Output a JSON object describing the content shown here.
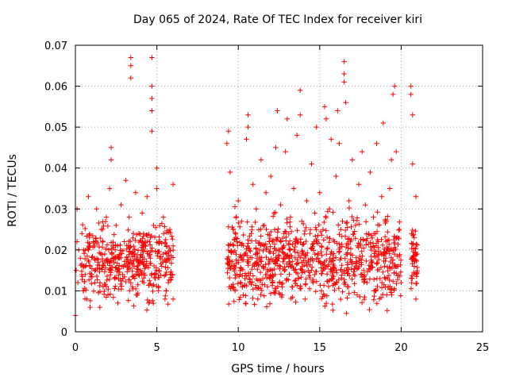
{
  "chart_data": {
    "type": "scatter",
    "title": "Day 065 of 2024, Rate Of TEC Index for receiver kiri",
    "xlabel": "GPS time / hours",
    "ylabel": "ROTI / TECUs",
    "xlim": [
      0,
      25
    ],
    "ylim": [
      0,
      0.07
    ],
    "xticks": [
      0,
      5,
      10,
      15,
      20,
      25
    ],
    "xtick_labels": [
      "0",
      "5",
      "10",
      "15",
      "20",
      "25"
    ],
    "yticks": [
      0,
      0.01,
      0.02,
      0.03,
      0.04,
      0.05,
      0.06,
      0.07
    ],
    "ytick_labels": [
      "0",
      "0.01",
      "0.02",
      "0.03",
      "0.04",
      "0.05",
      "0.06",
      "0.07"
    ],
    "grid": true,
    "marker": "+",
    "color": "#ff0000",
    "series": [
      {
        "name": "ROTI",
        "points": [
          [
            0.0,
            0.004
          ],
          [
            0.05,
            0.015
          ],
          [
            0.1,
            0.022
          ],
          [
            0.1,
            0.03
          ],
          [
            0.15,
            0.012
          ],
          [
            0.2,
            0.02
          ],
          [
            0.3,
            0.018
          ],
          [
            0.4,
            0.024
          ],
          [
            0.5,
            0.01
          ],
          [
            0.6,
            0.016
          ],
          [
            0.7,
            0.008
          ],
          [
            0.8,
            0.02
          ],
          [
            0.8,
            0.033
          ],
          [
            0.9,
            0.006
          ],
          [
            1.0,
            0.014
          ],
          [
            1.1,
            0.022
          ],
          [
            1.2,
            0.012
          ],
          [
            1.3,
            0.03
          ],
          [
            1.4,
            0.017
          ],
          [
            1.5,
            0.006
          ],
          [
            1.6,
            0.025
          ],
          [
            1.7,
            0.011
          ],
          [
            1.8,
            0.019
          ],
          [
            1.9,
            0.028
          ],
          [
            2.0,
            0.009
          ],
          [
            2.1,
            0.035
          ],
          [
            2.2,
            0.045
          ],
          [
            2.2,
            0.042
          ],
          [
            2.3,
            0.021
          ],
          [
            2.4,
            0.013
          ],
          [
            2.5,
            0.026
          ],
          [
            2.6,
            0.007
          ],
          [
            2.7,
            0.018
          ],
          [
            2.8,
            0.031
          ],
          [
            2.9,
            0.014
          ],
          [
            3.0,
            0.022
          ],
          [
            3.1,
            0.037
          ],
          [
            3.2,
            0.016
          ],
          [
            3.3,
            0.028
          ],
          [
            3.4,
            0.067
          ],
          [
            3.4,
            0.065
          ],
          [
            3.4,
            0.062
          ],
          [
            3.5,
            0.011
          ],
          [
            3.6,
            0.019
          ],
          [
            3.7,
            0.034
          ],
          [
            3.8,
            0.009
          ],
          [
            3.9,
            0.024
          ],
          [
            4.0,
            0.015
          ],
          [
            4.1,
            0.029
          ],
          [
            4.2,
            0.012
          ],
          [
            4.3,
            0.021
          ],
          [
            4.4,
            0.033
          ],
          [
            4.5,
            0.007
          ],
          [
            4.6,
            0.018
          ],
          [
            4.7,
            0.067
          ],
          [
            4.7,
            0.06
          ],
          [
            4.7,
            0.057
          ],
          [
            4.7,
            0.054
          ],
          [
            4.7,
            0.049
          ],
          [
            4.8,
            0.026
          ],
          [
            4.9,
            0.013
          ],
          [
            5.0,
            0.035
          ],
          [
            5.0,
            0.04
          ],
          [
            5.1,
            0.01
          ],
          [
            5.2,
            0.022
          ],
          [
            5.3,
            0.016
          ],
          [
            5.4,
            0.028
          ],
          [
            5.5,
            0.008
          ],
          [
            5.6,
            0.019
          ],
          [
            5.7,
            0.012
          ],
          [
            5.8,
            0.025
          ],
          [
            5.9,
            0.014
          ],
          [
            6.0,
            0.021
          ],
          [
            6.0,
            0.036
          ],
          [
            6.0,
            0.008
          ],
          [
            9.3,
            0.046
          ],
          [
            9.4,
            0.049
          ],
          [
            9.5,
            0.039
          ],
          [
            9.6,
            0.016
          ],
          [
            9.7,
            0.025
          ],
          [
            9.8,
            0.01
          ],
          [
            9.9,
            0.022
          ],
          [
            10.0,
            0.032
          ],
          [
            10.1,
            0.014
          ],
          [
            10.2,
            0.027
          ],
          [
            10.3,
            0.009
          ],
          [
            10.4,
            0.019
          ],
          [
            10.5,
            0.047
          ],
          [
            10.6,
            0.053
          ],
          [
            10.6,
            0.05
          ],
          [
            10.7,
            0.012
          ],
          [
            10.8,
            0.024
          ],
          [
            10.9,
            0.036
          ],
          [
            11.0,
            0.016
          ],
          [
            11.1,
            0.03
          ],
          [
            11.2,
            0.008
          ],
          [
            11.3,
            0.02
          ],
          [
            11.4,
            0.042
          ],
          [
            11.5,
            0.013
          ],
          [
            11.6,
            0.026
          ],
          [
            11.7,
            0.034
          ],
          [
            11.8,
            0.011
          ],
          [
            11.9,
            0.022
          ],
          [
            12.0,
            0.038
          ],
          [
            12.1,
            0.015
          ],
          [
            12.2,
            0.029
          ],
          [
            12.3,
            0.045
          ],
          [
            12.4,
            0.054
          ],
          [
            12.5,
            0.018
          ],
          [
            12.6,
            0.031
          ],
          [
            12.7,
            0.009
          ],
          [
            12.8,
            0.024
          ],
          [
            12.9,
            0.044
          ],
          [
            13.0,
            0.052
          ],
          [
            13.1,
            0.016
          ],
          [
            13.2,
            0.028
          ],
          [
            13.3,
            0.011
          ],
          [
            13.4,
            0.035
          ],
          [
            13.5,
            0.022
          ],
          [
            13.6,
            0.048
          ],
          [
            13.7,
            0.013
          ],
          [
            13.8,
            0.059
          ],
          [
            13.8,
            0.053
          ],
          [
            13.9,
            0.027
          ],
          [
            14.0,
            0.019
          ],
          [
            14.1,
            0.008
          ],
          [
            14.2,
            0.032
          ],
          [
            14.3,
            0.015
          ],
          [
            14.4,
            0.024
          ],
          [
            14.5,
            0.041
          ],
          [
            14.6,
            0.012
          ],
          [
            14.7,
            0.029
          ],
          [
            14.8,
            0.05
          ],
          [
            14.9,
            0.018
          ],
          [
            15.0,
            0.034
          ],
          [
            15.1,
            0.01
          ],
          [
            15.2,
            0.025
          ],
          [
            15.3,
            0.055
          ],
          [
            15.4,
            0.052
          ],
          [
            15.5,
            0.016
          ],
          [
            15.6,
            0.03
          ],
          [
            15.7,
            0.047
          ],
          [
            15.8,
            0.013
          ],
          [
            15.9,
            0.022
          ],
          [
            16.0,
            0.038
          ],
          [
            16.1,
            0.054
          ],
          [
            16.2,
            0.046
          ],
          [
            16.3,
            0.018
          ],
          [
            16.4,
            0.027
          ],
          [
            16.5,
            0.066
          ],
          [
            16.5,
            0.063
          ],
          [
            16.5,
            0.061
          ],
          [
            16.6,
            0.056
          ],
          [
            16.7,
            0.011
          ],
          [
            16.8,
            0.032
          ],
          [
            16.9,
            0.019
          ],
          [
            17.0,
            0.042
          ],
          [
            17.1,
            0.014
          ],
          [
            17.2,
            0.026
          ],
          [
            17.3,
            0.009
          ],
          [
            17.4,
            0.036
          ],
          [
            17.5,
            0.021
          ],
          [
            17.6,
            0.044
          ],
          [
            17.7,
            0.015
          ],
          [
            17.8,
            0.031
          ],
          [
            17.9,
            0.012
          ],
          [
            18.0,
            0.024
          ],
          [
            18.1,
            0.039
          ],
          [
            18.2,
            0.017
          ],
          [
            18.3,
            0.028
          ],
          [
            18.4,
            0.01
          ],
          [
            18.5,
            0.046
          ],
          [
            18.6,
            0.022
          ],
          [
            18.7,
            0.013
          ],
          [
            18.8,
            0.033
          ],
          [
            18.9,
            0.051
          ],
          [
            19.0,
            0.019
          ],
          [
            19.1,
            0.027
          ],
          [
            19.2,
            0.011
          ],
          [
            19.3,
            0.035
          ],
          [
            19.4,
            0.042
          ],
          [
            19.5,
            0.058
          ],
          [
            19.6,
            0.06
          ],
          [
            19.7,
            0.044
          ],
          [
            19.8,
            0.016
          ],
          [
            19.9,
            0.025
          ],
          [
            20.0,
            0.012
          ],
          [
            20.6,
            0.06
          ],
          [
            20.6,
            0.058
          ],
          [
            20.7,
            0.053
          ],
          [
            20.7,
            0.041
          ],
          [
            20.8,
            0.023
          ],
          [
            20.8,
            0.016
          ],
          [
            20.9,
            0.033
          ],
          [
            20.9,
            0.008
          ],
          [
            21.0,
            0.019
          ]
        ]
      }
    ],
    "density_clusters": [
      {
        "x": [
          0.3,
          6.0
        ],
        "y": [
          0.004,
          0.03
        ],
        "count": 420
      },
      {
        "x": [
          9.3,
          20.0
        ],
        "y": [
          0.003,
          0.032
        ],
        "count": 820
      },
      {
        "x": [
          20.6,
          21.0
        ],
        "y": [
          0.006,
          0.028
        ],
        "count": 50
      }
    ]
  }
}
